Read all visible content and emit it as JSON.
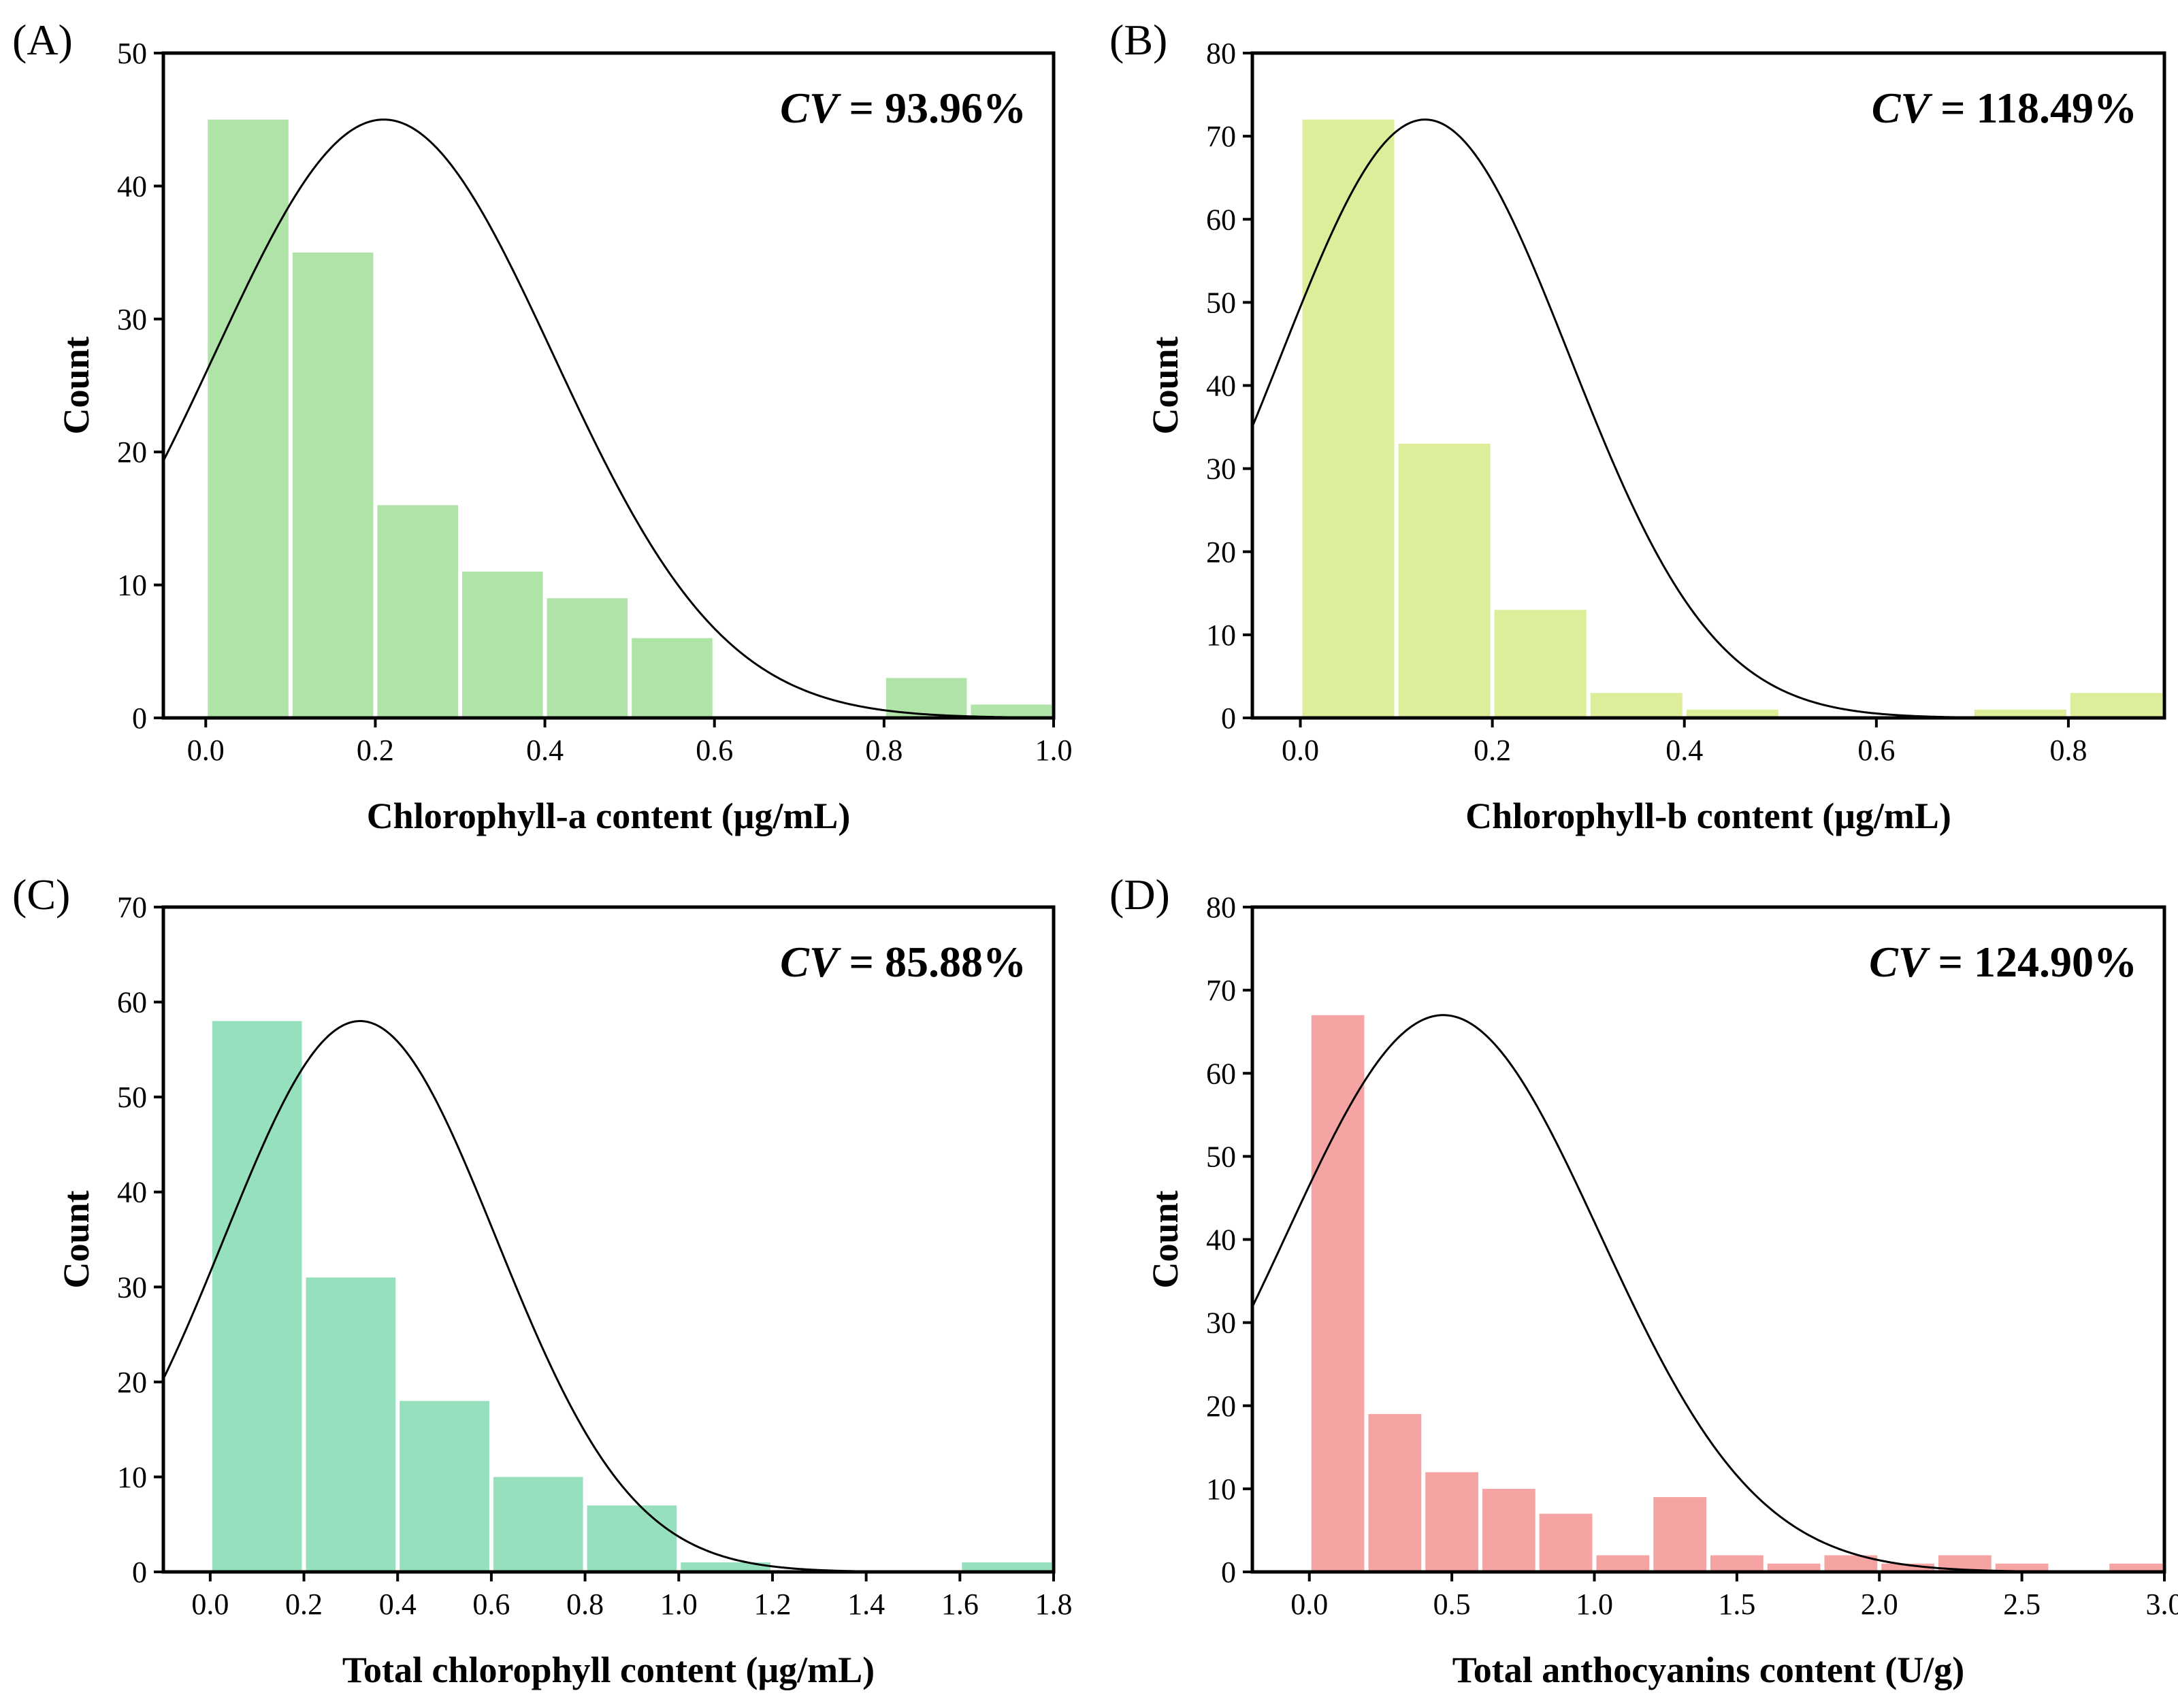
{
  "chart_data": [
    {
      "type": "bar",
      "panel_label": "(A)",
      "xlabel": "Chlorophyll-a content (μg/mL)",
      "ylabel": "Count",
      "annotation": {
        "prefix": "CV",
        "value": " = 93.96%"
      },
      "xlim": [
        -0.05,
        1.0
      ],
      "ylim": [
        0,
        50
      ],
      "xticks": [
        0.0,
        0.2,
        0.4,
        0.6,
        0.8,
        1.0
      ],
      "xtick_labels": [
        "0.0",
        "0.2",
        "0.4",
        "0.6",
        "0.8",
        "1.0"
      ],
      "yticks": [
        0,
        10,
        20,
        30,
        40,
        50
      ],
      "ytick_labels": [
        "0",
        "10",
        "20",
        "30",
        "40",
        "50"
      ],
      "bin_edges": [
        0.0,
        0.1,
        0.2,
        0.3,
        0.4,
        0.5,
        0.6,
        0.7,
        0.8,
        0.9,
        1.0
      ],
      "counts": [
        45,
        35,
        16,
        11,
        9,
        6,
        0,
        0,
        3,
        1
      ],
      "bar_color": "#b0e3a8",
      "normal_curve": {
        "mean": 0.21,
        "sd": 0.2,
        "peak": 45
      }
    },
    {
      "type": "bar",
      "panel_label": "(B)",
      "xlabel": "Chlorophyll-b content (μg/mL)",
      "ylabel": "Count",
      "annotation": {
        "prefix": "CV",
        "value": " = 118.49%"
      },
      "xlim": [
        -0.05,
        0.9
      ],
      "ylim": [
        0,
        80
      ],
      "xticks": [
        0.0,
        0.2,
        0.4,
        0.6,
        0.8
      ],
      "xtick_labels": [
        "0.0",
        "0.2",
        "0.4",
        "0.6",
        "0.8"
      ],
      "yticks": [
        0,
        10,
        20,
        30,
        40,
        50,
        60,
        70,
        80
      ],
      "ytick_labels": [
        "0",
        "10",
        "20",
        "30",
        "40",
        "50",
        "60",
        "70",
        "80"
      ],
      "bin_edges": [
        0.0,
        0.1,
        0.2,
        0.3,
        0.4,
        0.5,
        0.6,
        0.7,
        0.8,
        0.9
      ],
      "counts": [
        72,
        33,
        13,
        3,
        1,
        0,
        0,
        1,
        3
      ],
      "bar_color": "#dcee9a",
      "normal_curve": {
        "mean": 0.13,
        "sd": 0.15,
        "peak": 72
      }
    },
    {
      "type": "bar",
      "panel_label": "(C)",
      "xlabel": "Total chlorophyll content (μg/mL)",
      "ylabel": "Count",
      "annotation": {
        "prefix": "CV",
        "value": " = 85.88%"
      },
      "xlim": [
        -0.1,
        1.8
      ],
      "ylim": [
        0,
        70
      ],
      "xticks": [
        0.0,
        0.2,
        0.4,
        0.6,
        0.8,
        1.0,
        1.2,
        1.4,
        1.6,
        1.8
      ],
      "xtick_labels": [
        "0.0",
        "0.2",
        "0.4",
        "0.6",
        "0.8",
        "1.0",
        "1.2",
        "1.4",
        "1.6",
        "1.8"
      ],
      "yticks": [
        0,
        10,
        20,
        30,
        40,
        50,
        60,
        70
      ],
      "ytick_labels": [
        "0",
        "10",
        "20",
        "30",
        "40",
        "50",
        "60",
        "70"
      ],
      "bin_edges": [
        0.0,
        0.2,
        0.4,
        0.6,
        0.8,
        1.0,
        1.2,
        1.4,
        1.6,
        1.8
      ],
      "counts": [
        58,
        31,
        18,
        10,
        7,
        1,
        0,
        0,
        1
      ],
      "bar_color": "#96e0bd",
      "normal_curve": {
        "mean": 0.32,
        "sd": 0.29,
        "peak": 58
      }
    },
    {
      "type": "bar",
      "panel_label": "(D)",
      "xlabel": "Total anthocyanins content (U/g)",
      "ylabel": "Count",
      "annotation": {
        "prefix": "CV",
        "value": " = 124.90%"
      },
      "xlim": [
        -0.2,
        3.0
      ],
      "ylim": [
        0,
        80
      ],
      "xticks": [
        0.0,
        0.5,
        1.0,
        1.5,
        2.0,
        2.5,
        3.0
      ],
      "xtick_labels": [
        "0.0",
        "0.5",
        "1.0",
        "1.5",
        "2.0",
        "2.5",
        "3.0"
      ],
      "yticks": [
        0,
        10,
        20,
        30,
        40,
        50,
        60,
        70,
        80
      ],
      "ytick_labels": [
        "0",
        "10",
        "20",
        "30",
        "40",
        "50",
        "60",
        "70",
        "80"
      ],
      "bin_edges": [
        0.0,
        0.2,
        0.4,
        0.6,
        0.8,
        1.0,
        1.2,
        1.4,
        1.6,
        1.8,
        2.0,
        2.2,
        2.4,
        2.6,
        2.8,
        3.0
      ],
      "counts": [
        67,
        19,
        12,
        10,
        7,
        2,
        9,
        2,
        1,
        2,
        1,
        2,
        1,
        0,
        1
      ],
      "bar_color": "#f5a3a3",
      "normal_curve": {
        "mean": 0.47,
        "sd": 0.55,
        "peak": 67
      }
    }
  ]
}
